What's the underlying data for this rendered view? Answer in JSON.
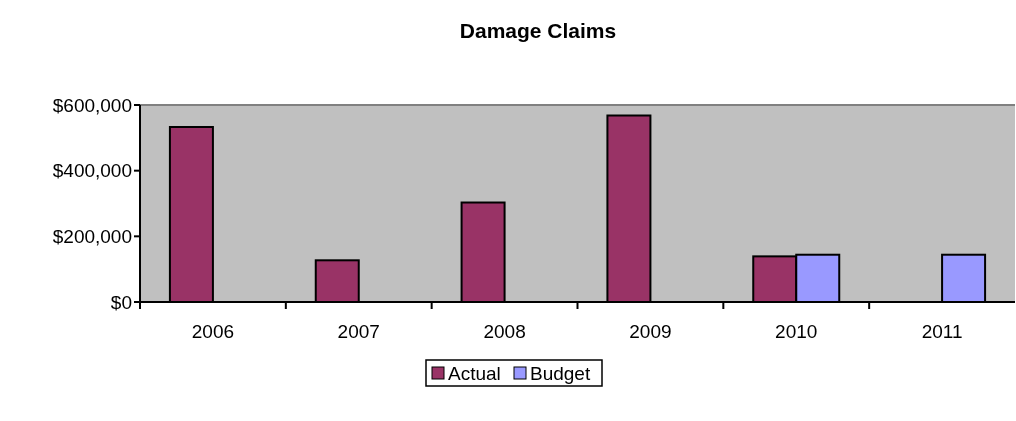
{
  "chart_data": {
    "type": "bar",
    "title": "Damage Claims",
    "categories": [
      "2006",
      "2007",
      "2008",
      "2009",
      "2010",
      "2011"
    ],
    "series": [
      {
        "name": "Actual",
        "color": "#993366",
        "values": [
          533000,
          127000,
          303000,
          568000,
          139000,
          null
        ]
      },
      {
        "name": "Budget",
        "color": "#9999ff",
        "values": [
          null,
          null,
          null,
          null,
          144000,
          144000
        ]
      }
    ],
    "ylim": [
      0,
      600000
    ],
    "yticks": [
      {
        "value": 0,
        "label": "$0"
      },
      {
        "value": 200000,
        "label": "$200,000"
      },
      {
        "value": 400000,
        "label": "$400,000"
      },
      {
        "value": 600000,
        "label": "$600,000"
      }
    ],
    "grid": false,
    "legend": "bottom"
  }
}
